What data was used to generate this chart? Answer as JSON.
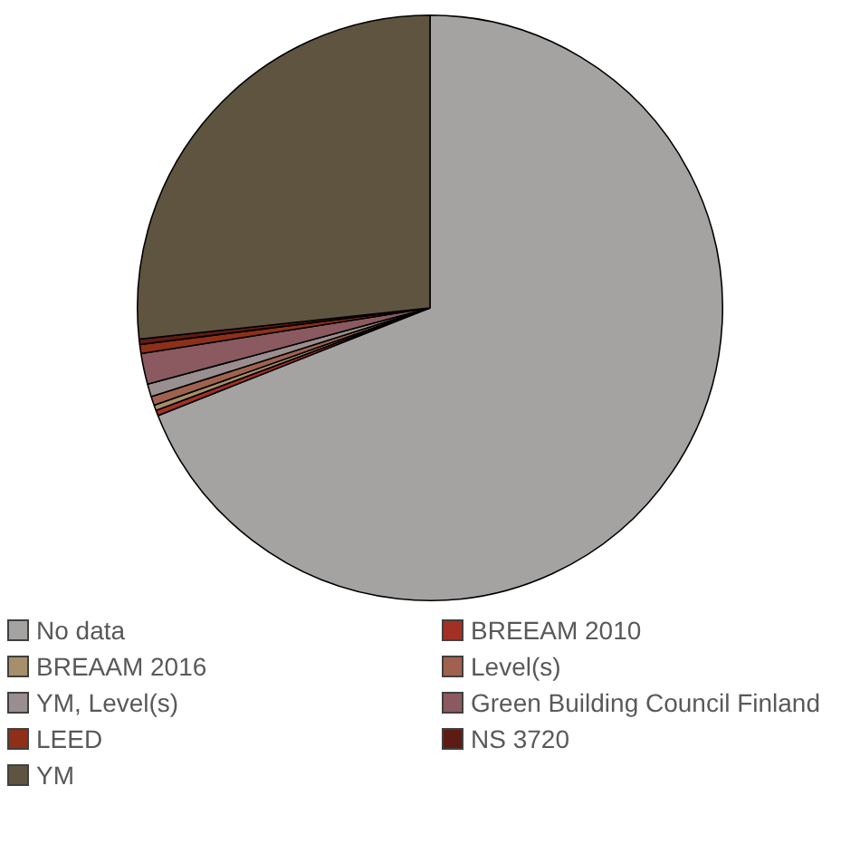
{
  "chart_data": {
    "type": "pie",
    "categories": [
      "No data",
      "BREEAM 2010",
      "BREAAM 2016",
      "Level(s)",
      "YM, Level(s)",
      "Green Building Council Finland",
      "LEED",
      "NS 3720",
      "YM"
    ],
    "values": [
      69,
      0.3,
      0.3,
      0.5,
      0.7,
      1.7,
      0.5,
      0.3,
      26.7
    ],
    "colors": [
      "#a5a2a2",
      "#a33025",
      "#a68f6b",
      "#a0624f",
      "#9a8f90",
      "#8a5a60",
      "#8e3018",
      "#5e1b14",
      "#5f5440"
    ],
    "legend": "bottom"
  }
}
